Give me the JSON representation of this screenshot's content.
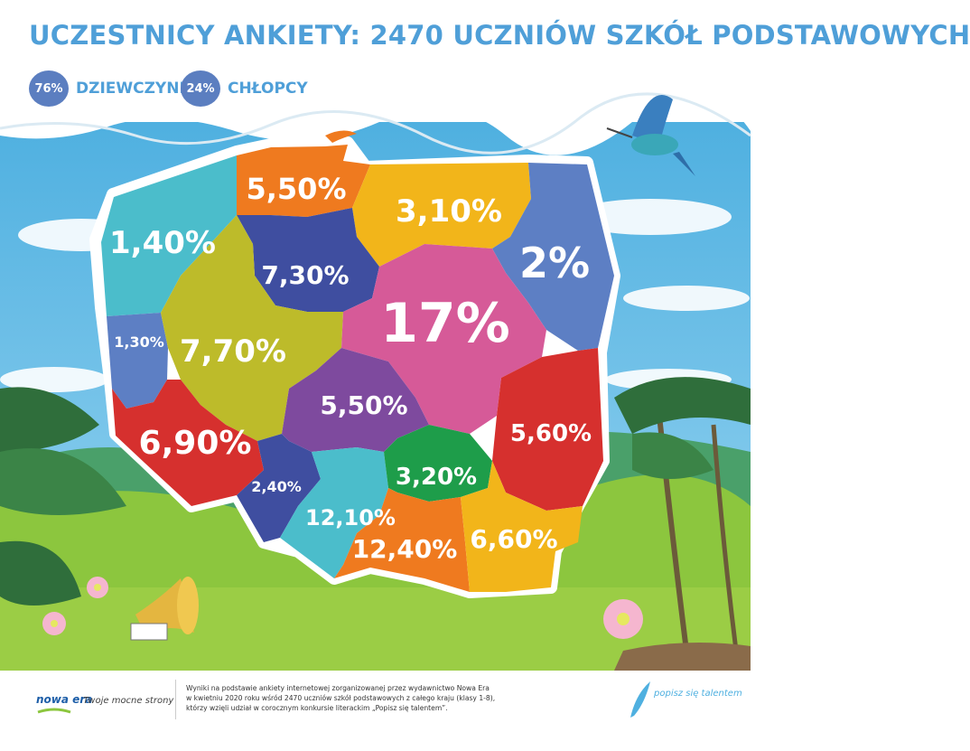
{
  "header": {
    "title": "UCZESTNICY ANKIETY: 2470 UCZNIÓW SZKÓŁ PODSTAWOWYCH",
    "legend": [
      {
        "badge": "76%",
        "label": "DZIEWCZYNKI"
      },
      {
        "badge": "24%",
        "label": "CHŁOPCY"
      }
    ]
  },
  "map": {
    "regions": [
      {
        "name": "zachodniopomorskie",
        "value": "1,40%",
        "color": "#4bbdcb"
      },
      {
        "name": "pomorskie",
        "value": "5,50%",
        "color": "#ef7a1f"
      },
      {
        "name": "warminsko-mazurskie",
        "value": "3,10%",
        "color": "#f2b51a"
      },
      {
        "name": "podlaskie",
        "value": "2%",
        "color": "#5d7fc4"
      },
      {
        "name": "kujawsko-pomorskie",
        "value": "7,30%",
        "color": "#3f4ea0"
      },
      {
        "name": "lubuskie",
        "value": "1,30%",
        "color": "#5d7fc4"
      },
      {
        "name": "wielkopolskie",
        "value": "7,70%",
        "color": "#bdbb2a"
      },
      {
        "name": "mazowieckie",
        "value": "17%",
        "color": "#d65a98"
      },
      {
        "name": "lodzkie",
        "value": "5,50%",
        "color": "#7e4a9e"
      },
      {
        "name": "dolnoslaskie",
        "value": "6,90%",
        "color": "#d6302e"
      },
      {
        "name": "lubelskie",
        "value": "5,60%",
        "color": "#d6302e"
      },
      {
        "name": "opolskie",
        "value": "2,40%",
        "color": "#3f4ea0"
      },
      {
        "name": "slaskie",
        "value": "12,10%",
        "color": "#4bbdcb"
      },
      {
        "name": "swietokrzyskie",
        "value": "3,20%",
        "color": "#1e9d4a"
      },
      {
        "name": "malopolskie",
        "value": "12,40%",
        "color": "#ef7a1f"
      },
      {
        "name": "podkarpackie",
        "value": "6,60%",
        "color": "#f2b51a"
      }
    ]
  },
  "footer": {
    "logo_text": "nowa era",
    "slogan": "Twoje mocne strony",
    "note_lines": [
      "Wyniki na podstawie ankiety internetowej zorganizowanej przez wydawnictwo Nowa Era",
      "w kwietniu 2020 roku wśród 2470 uczniów szkół podstawowych z całego kraju (klasy 1-8),",
      "którzy wzięli udział w corocznym konkursie literackim „Popisz się talentem”."
    ],
    "brand": "popisz się talentem"
  }
}
